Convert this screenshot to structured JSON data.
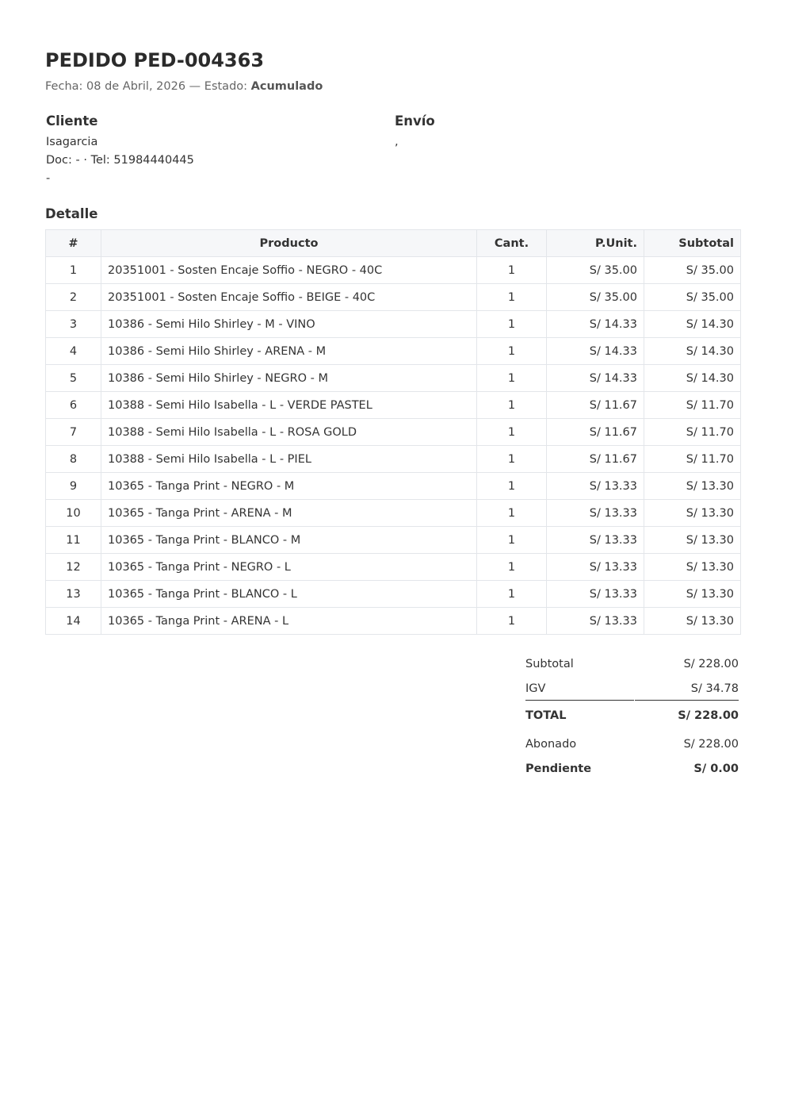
{
  "header": {
    "title": "PEDIDO PED-004363",
    "fecha_label": "Fecha: 08 de Abril, 2026 — Estado: ",
    "estado": "Acumulado"
  },
  "cliente": {
    "heading": "Cliente",
    "nombre": "Isagarcia",
    "doc_tel": "Doc: - · Tel: 51984440445",
    "direccion": "-"
  },
  "envio": {
    "heading": "Envío",
    "direccion": ","
  },
  "detalle": {
    "heading": "Detalle",
    "columns": [
      "#",
      "Producto",
      "Cant.",
      "P.Unit.",
      "Subtotal"
    ],
    "rows": [
      [
        "1",
        "20351001 - Sosten Encaje Soffio - NEGRO - 40C",
        "1",
        "S/ 35.00",
        "S/ 35.00"
      ],
      [
        "2",
        "20351001 - Sosten Encaje Soffio - BEIGE - 40C",
        "1",
        "S/ 35.00",
        "S/ 35.00"
      ],
      [
        "3",
        "10386 - Semi Hilo Shirley - M - VINO",
        "1",
        "S/ 14.33",
        "S/ 14.30"
      ],
      [
        "4",
        "10386 - Semi Hilo Shirley - ARENA - M",
        "1",
        "S/ 14.33",
        "S/ 14.30"
      ],
      [
        "5",
        "10386 - Semi Hilo Shirley - NEGRO - M",
        "1",
        "S/ 14.33",
        "S/ 14.30"
      ],
      [
        "6",
        "10388 - Semi Hilo Isabella - L - VERDE PASTEL",
        "1",
        "S/ 11.67",
        "S/ 11.70"
      ],
      [
        "7",
        "10388 - Semi Hilo Isabella - L - ROSA GOLD",
        "1",
        "S/ 11.67",
        "S/ 11.70"
      ],
      [
        "8",
        "10388 - Semi Hilo Isabella - L - PIEL",
        "1",
        "S/ 11.67",
        "S/ 11.70"
      ],
      [
        "9",
        "10365 - Tanga Print - NEGRO - M",
        "1",
        "S/ 13.33",
        "S/ 13.30"
      ],
      [
        "10",
        "10365 - Tanga Print - ARENA - M",
        "1",
        "S/ 13.33",
        "S/ 13.30"
      ],
      [
        "11",
        "10365 - Tanga Print - BLANCO - M",
        "1",
        "S/ 13.33",
        "S/ 13.30"
      ],
      [
        "12",
        "10365 - Tanga Print - NEGRO - L",
        "1",
        "S/ 13.33",
        "S/ 13.30"
      ],
      [
        "13",
        "10365 - Tanga Print - BLANCO - L",
        "1",
        "S/ 13.33",
        "S/ 13.30"
      ],
      [
        "14",
        "10365 - Tanga Print - ARENA - L",
        "1",
        "S/ 13.33",
        "S/ 13.30"
      ]
    ]
  },
  "totals": {
    "subtotal_label": "Subtotal",
    "subtotal": "S/ 228.00",
    "igv_label": "IGV",
    "igv": "S/ 34.78",
    "total_label": "TOTAL",
    "total": "S/ 228.00",
    "abonado_label": "Abonado",
    "abonado": "S/ 228.00",
    "pendiente_label": "Pendiente",
    "pendiente": "S/ 0.00"
  }
}
